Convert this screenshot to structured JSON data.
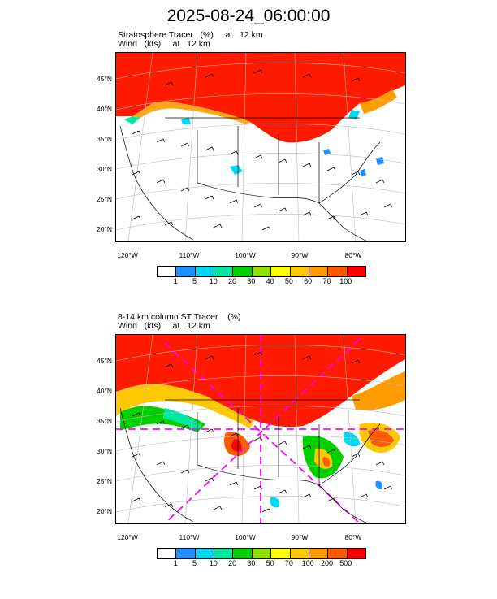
{
  "title": "2025-08-24_06:00:00",
  "panels": [
    {
      "title_line1": "Stratosphere Tracer   (%)     at   12 km",
      "title_line2": "Wind   (kts)     at   12 km",
      "colorbar": {
        "colors": [
          "#ffffff",
          "#1e90ff",
          "#00d8f0",
          "#00e8a0",
          "#00d000",
          "#90e000",
          "#ffff00",
          "#ffc800",
          "#ff9c00",
          "#ff5a00",
          "#ff0000"
        ],
        "labels": [
          "1",
          "5",
          "10",
          "20",
          "30",
          "40",
          "50",
          "60",
          "70",
          "100"
        ]
      }
    },
    {
      "title_line1": "8-14 km column ST Tracer    (%)",
      "title_line2": "Wind   (kts)     at   12 km",
      "colorbar": {
        "colors": [
          "#ffffff",
          "#1e90ff",
          "#00d8f0",
          "#00e8a0",
          "#00d000",
          "#90e000",
          "#ffff00",
          "#ffc800",
          "#ff9c00",
          "#ff5a00",
          "#ff0000"
        ],
        "labels": [
          "1",
          "5",
          "10",
          "20",
          "30",
          "50",
          "70",
          "100",
          "200",
          "500"
        ]
      }
    }
  ],
  "lat_labels": [
    "45°N",
    "40°N",
    "35°N",
    "30°N",
    "25°N",
    "20°N"
  ],
  "lon_labels": [
    "120°W",
    "110°W",
    "100°W",
    "90°W",
    "80°W"
  ]
}
